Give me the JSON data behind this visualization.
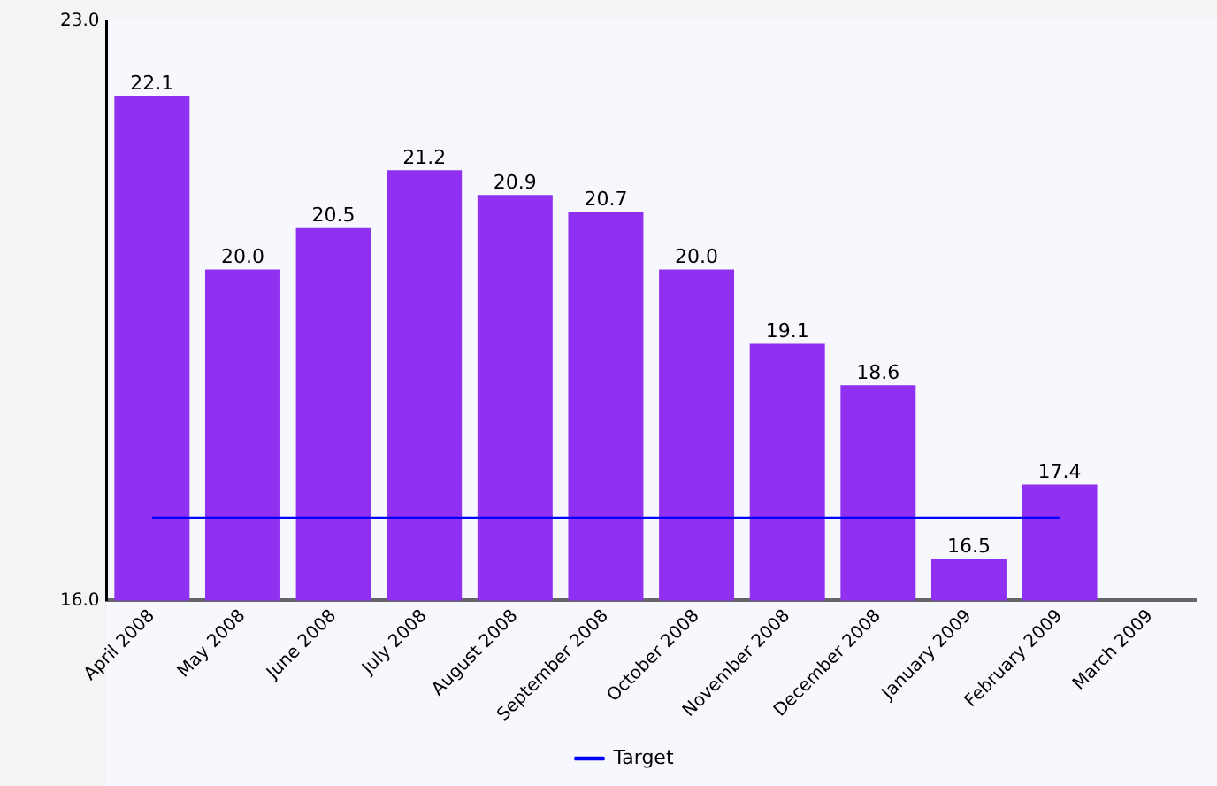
{
  "chart_data": {
    "type": "bar",
    "categories": [
      "April 2008",
      "May 2008",
      "June 2008",
      "July 2008",
      "August 2008",
      "September 2008",
      "October 2008",
      "November 2008",
      "December 2008",
      "January 2009",
      "February 2009",
      "March 2009"
    ],
    "series": [
      {
        "color": "#9030f0",
        "values": [
          22.1,
          20.0,
          20.5,
          21.2,
          20.9,
          20.7,
          20.0,
          19.1,
          18.6,
          16.5,
          17.4,
          null
        ],
        "value_labels": [
          "22.1",
          "20.0",
          "20.5",
          "21.2",
          "20.9",
          "20.7",
          "20.0",
          "19.1",
          "18.6",
          "16.5",
          "17.4",
          null
        ]
      },
      {
        "type": "line",
        "name": "Target",
        "color": "#0000ff",
        "values": [
          17.0,
          17.0,
          17.0,
          17.0,
          17.0,
          17.0,
          17.0,
          17.0,
          17.0,
          17.0,
          17.0,
          null
        ]
      }
    ],
    "ylim": [
      16,
      23
    ],
    "yticks": [
      {
        "value": 16,
        "label": "16.0"
      },
      {
        "value": 23,
        "label": "23.0"
      }
    ],
    "grid": false,
    "legend": "bottom",
    "marker": "none",
    "line_style": "solid"
  }
}
